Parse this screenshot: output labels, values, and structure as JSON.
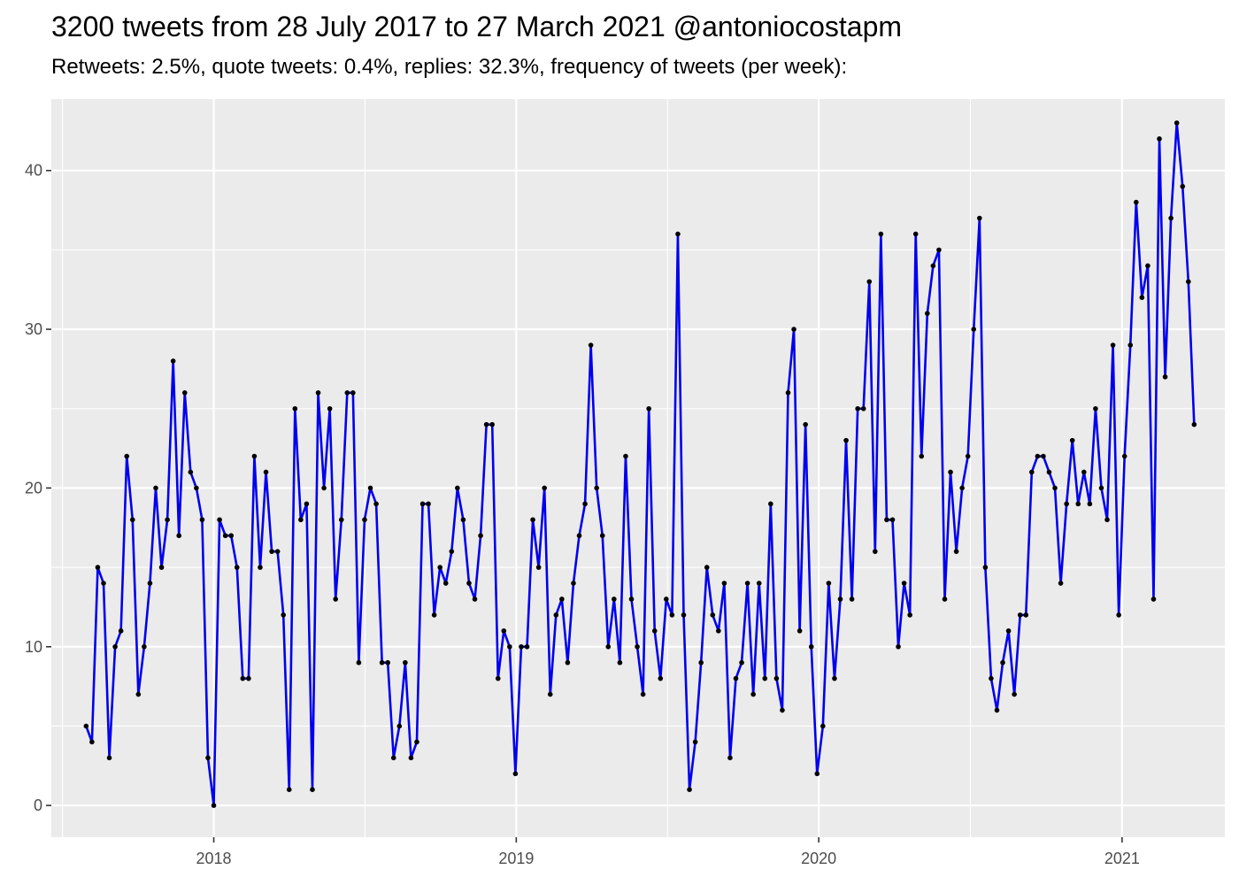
{
  "chart_data": {
    "type": "line",
    "title": "3200 tweets from 28 July 2017 to 27 March 2021 @antoniocostapm",
    "subtitle": "Retweets: 2.5%, quote tweets: 0.4%, replies: 32.3%, frequency of tweets (per week):",
    "xlabel": "",
    "ylabel": "",
    "x_ticks": [
      "2018",
      "2019",
      "2020",
      "2021"
    ],
    "y_ticks": [
      "0",
      "10",
      "20",
      "30",
      "40"
    ],
    "xlim": [
      "2017-06-19",
      "2021-05-05"
    ],
    "ylim": [
      -2,
      44.5
    ],
    "grid": true,
    "series": [
      {
        "color": "#0000ee",
        "point_color": "#000000",
        "values": [
          5,
          4,
          15,
          14,
          3,
          10,
          11,
          22,
          18,
          7,
          10,
          14,
          20,
          15,
          18,
          28,
          17,
          26,
          21,
          20,
          18,
          3,
          0,
          18,
          17,
          17,
          15,
          8,
          8,
          22,
          15,
          21,
          16,
          16,
          12,
          1,
          25,
          18,
          19,
          1,
          26,
          20,
          25,
          13,
          18,
          26,
          26,
          9,
          18,
          20,
          19,
          9,
          9,
          3,
          5,
          9,
          3,
          4,
          19,
          19,
          12,
          15,
          14,
          16,
          20,
          18,
          14,
          13,
          17,
          24,
          24,
          8,
          11,
          10,
          2,
          10,
          10,
          18,
          15,
          20,
          7,
          12,
          13,
          9,
          14,
          17,
          19,
          29,
          20,
          17,
          10,
          13,
          9,
          22,
          13,
          10,
          7,
          25,
          11,
          8,
          13,
          12,
          36,
          12,
          1,
          4,
          9,
          15,
          12,
          11,
          14,
          3,
          8,
          9,
          14,
          7,
          14,
          8,
          19,
          8,
          6,
          26,
          30,
          11,
          24,
          10,
          2,
          5,
          14,
          8,
          13,
          23,
          13,
          25,
          25,
          33,
          16,
          36,
          18,
          18,
          10,
          14,
          12,
          36,
          22,
          31,
          34,
          35,
          13,
          21,
          16,
          20,
          22,
          30,
          37,
          15,
          8,
          6,
          9,
          11,
          7,
          12,
          12,
          21,
          22,
          22,
          21,
          20,
          14,
          19,
          23,
          19,
          21,
          19,
          25,
          20,
          18,
          29,
          12,
          22,
          29,
          38,
          32,
          34,
          13,
          42,
          27,
          37,
          43,
          39,
          33,
          24
        ]
      }
    ]
  }
}
